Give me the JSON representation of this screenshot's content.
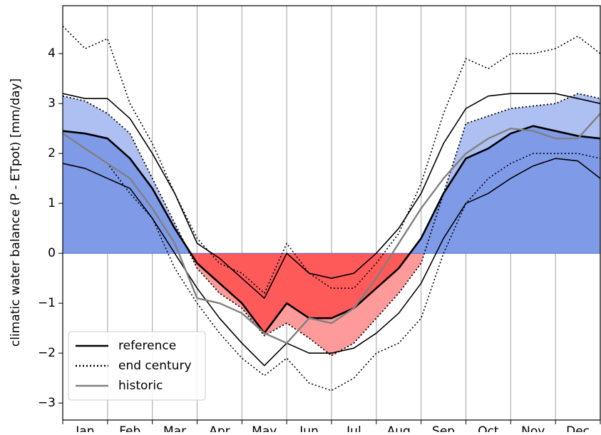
{
  "chart_data": {
    "type": "line",
    "y_label": "climatic water balance (P - ETpot) [mm/day]",
    "categories": [
      null,
      "Jan",
      null,
      "Feb",
      null,
      "Mar",
      null,
      "Apr",
      null,
      "May",
      null,
      "Jun",
      null,
      "Jul",
      null,
      "Aug",
      null,
      "Sep",
      null,
      "Oct",
      null,
      "Nov",
      null,
      "Dec",
      null
    ],
    "ylim": [
      -3.34,
      4.96
    ],
    "yticks": [
      {
        "value": -3,
        "label": "−3"
      },
      {
        "value": -2,
        "label": "−2"
      },
      {
        "value": -1,
        "label": "−1"
      },
      0,
      1,
      2,
      3,
      4
    ],
    "xgrid": true,
    "legend": "lower left",
    "fill_colors": {
      "positive": "#7f9be8",
      "positive_change": "#aebff2",
      "negative": "#ff5a5a",
      "negative_change": "#ff9a9a"
    },
    "series": [
      {
        "name": "reference",
        "color": "#000000",
        "style": "solid",
        "values": [
          2.45,
          2.4,
          2.3,
          1.9,
          1.3,
          0.5,
          -0.2,
          -0.6,
          -1.0,
          -1.6,
          -1.0,
          -1.3,
          -1.3,
          -1.1,
          -0.7,
          -0.3,
          0.3,
          1.2,
          1.9,
          2.1,
          2.4,
          2.55,
          2.45,
          2.35,
          2.3
        ],
        "upper": [
          3.2,
          3.1,
          3.1,
          2.7,
          2.0,
          1.2,
          0.2,
          -0.1,
          -0.5,
          -0.9,
          0.0,
          -0.4,
          -0.5,
          -0.4,
          0.0,
          0.5,
          1.2,
          2.2,
          2.9,
          3.15,
          3.2,
          3.2,
          3.2,
          3.1,
          3.0
        ],
        "lower": [
          1.8,
          1.7,
          1.5,
          1.3,
          0.7,
          0.0,
          -0.7,
          -1.3,
          -1.8,
          -2.25,
          -1.8,
          -2.0,
          -2.0,
          -1.9,
          -1.6,
          -1.2,
          -0.6,
          0.3,
          1.0,
          1.2,
          1.5,
          1.75,
          1.9,
          1.85,
          1.5
        ]
      },
      {
        "name": "end century",
        "color": "#000000",
        "style": "dotted",
        "values": [
          3.15,
          3.05,
          2.8,
          2.4,
          1.5,
          0.6,
          -0.3,
          -0.8,
          -1.1,
          -1.65,
          -1.4,
          -1.7,
          -2.05,
          -1.8,
          -1.3,
          -0.8,
          -0.2,
          1.2,
          2.6,
          2.75,
          2.9,
          2.95,
          3.0,
          3.2,
          3.1
        ],
        "upper": [
          4.55,
          4.1,
          4.3,
          3.0,
          2.2,
          1.2,
          0.3,
          -0.2,
          -0.4,
          -0.8,
          0.2,
          -0.4,
          -0.7,
          -0.7,
          -0.2,
          0.4,
          1.4,
          2.8,
          3.9,
          3.7,
          4.0,
          4.0,
          4.1,
          4.35,
          4.0
        ],
        "lower": [
          2.4,
          2.1,
          1.8,
          1.2,
          0.7,
          -0.3,
          -1.0,
          -1.6,
          -2.1,
          -2.45,
          -2.1,
          -2.6,
          -2.75,
          -2.5,
          -2.0,
          -1.8,
          -1.3,
          0.0,
          1.0,
          1.5,
          1.8,
          2.0,
          2.0,
          2.0,
          1.9
        ]
      },
      {
        "name": "historic",
        "color": "#808080",
        "style": "solid",
        "values": [
          2.4,
          2.1,
          1.8,
          1.5,
          0.9,
          0.2,
          -0.9,
          -1.0,
          -1.2,
          -1.6,
          -1.8,
          -1.3,
          -1.4,
          -1.1,
          -0.5,
          0.2,
          0.9,
          1.5,
          2.0,
          2.3,
          2.5,
          2.45,
          2.3,
          2.3,
          2.8
        ]
      }
    ]
  }
}
